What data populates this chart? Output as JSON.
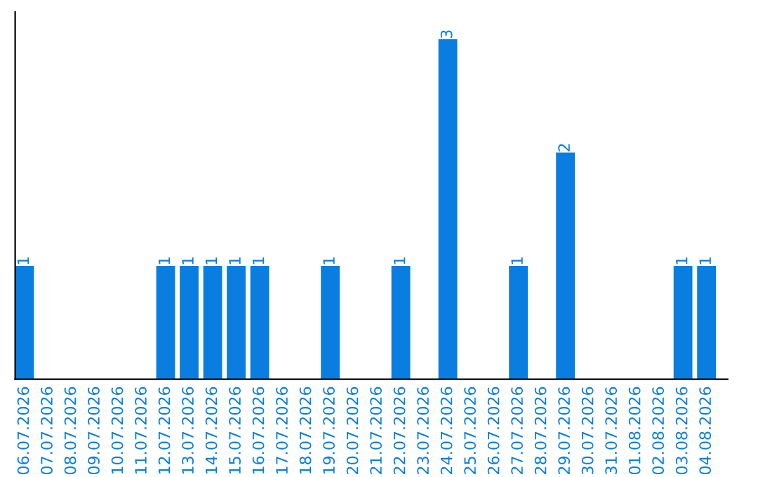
{
  "chart_data": {
    "type": "bar",
    "categories": [
      "06.07.2026",
      "07.07.2026",
      "08.07.2026",
      "09.07.2026",
      "10.07.2026",
      "11.07.2026",
      "12.07.2026",
      "13.07.2026",
      "14.07.2026",
      "15.07.2026",
      "16.07.2026",
      "17.07.2026",
      "18.07.2026",
      "19.07.2026",
      "20.07.2026",
      "21.07.2026",
      "22.07.2026",
      "23.07.2026",
      "24.07.2026",
      "25.07.2026",
      "26.07.2026",
      "27.07.2026",
      "28.07.2026",
      "29.07.2026",
      "30.07.2026",
      "31.07.2026",
      "01.08.2026",
      "02.08.2026",
      "03.08.2026",
      "04.08.2026"
    ],
    "values": [
      1,
      0,
      0,
      0,
      0,
      0,
      1,
      1,
      1,
      1,
      1,
      0,
      0,
      1,
      0,
      0,
      1,
      0,
      3,
      0,
      0,
      1,
      0,
      2,
      0,
      0,
      0,
      0,
      1,
      1
    ],
    "value_labels": [
      "1",
      null,
      null,
      null,
      null,
      null,
      "1",
      "1",
      "1",
      "1",
      "1",
      null,
      null,
      "1",
      null,
      null,
      "1",
      null,
      "3",
      null,
      null,
      "1",
      null,
      "2",
      null,
      null,
      null,
      null,
      "1",
      "1"
    ],
    "color": "#0a7ee0",
    "tick_labels": "x",
    "grid": false,
    "legend": false
  }
}
